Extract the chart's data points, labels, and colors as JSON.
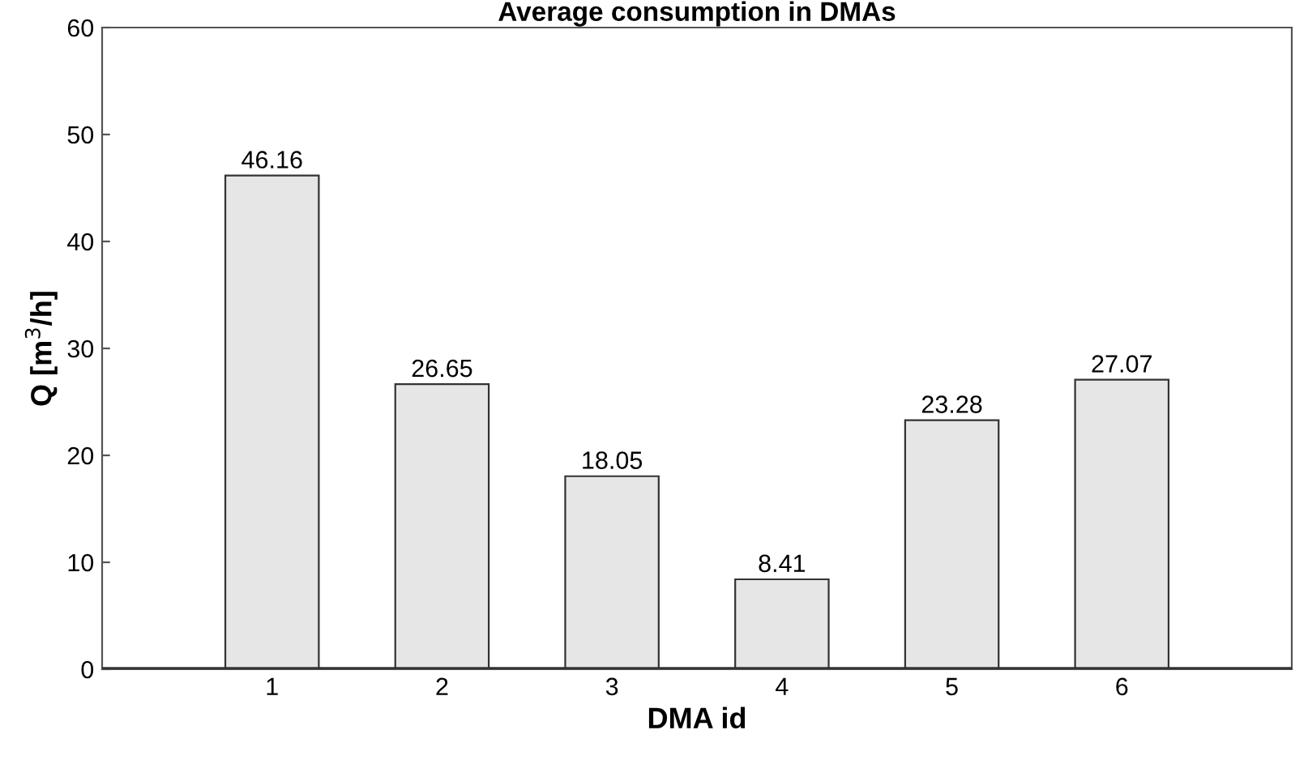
{
  "chart_data": {
    "type": "bar",
    "title": "Average consumption in DMAs",
    "xlabel": "DMA id",
    "ylabel": "Q [m$^{3}$/h]",
    "categories": [
      "1",
      "2",
      "3",
      "4",
      "5",
      "6"
    ],
    "values": [
      46.16,
      26.65,
      18.05,
      8.41,
      23.28,
      27.07
    ],
    "color": "#e6e6e6",
    "ylim": [
      0,
      60
    ],
    "yticks": [
      0,
      10,
      20,
      30,
      40,
      50,
      60
    ],
    "grid": false,
    "legend": false,
    "data_labels": true
  }
}
